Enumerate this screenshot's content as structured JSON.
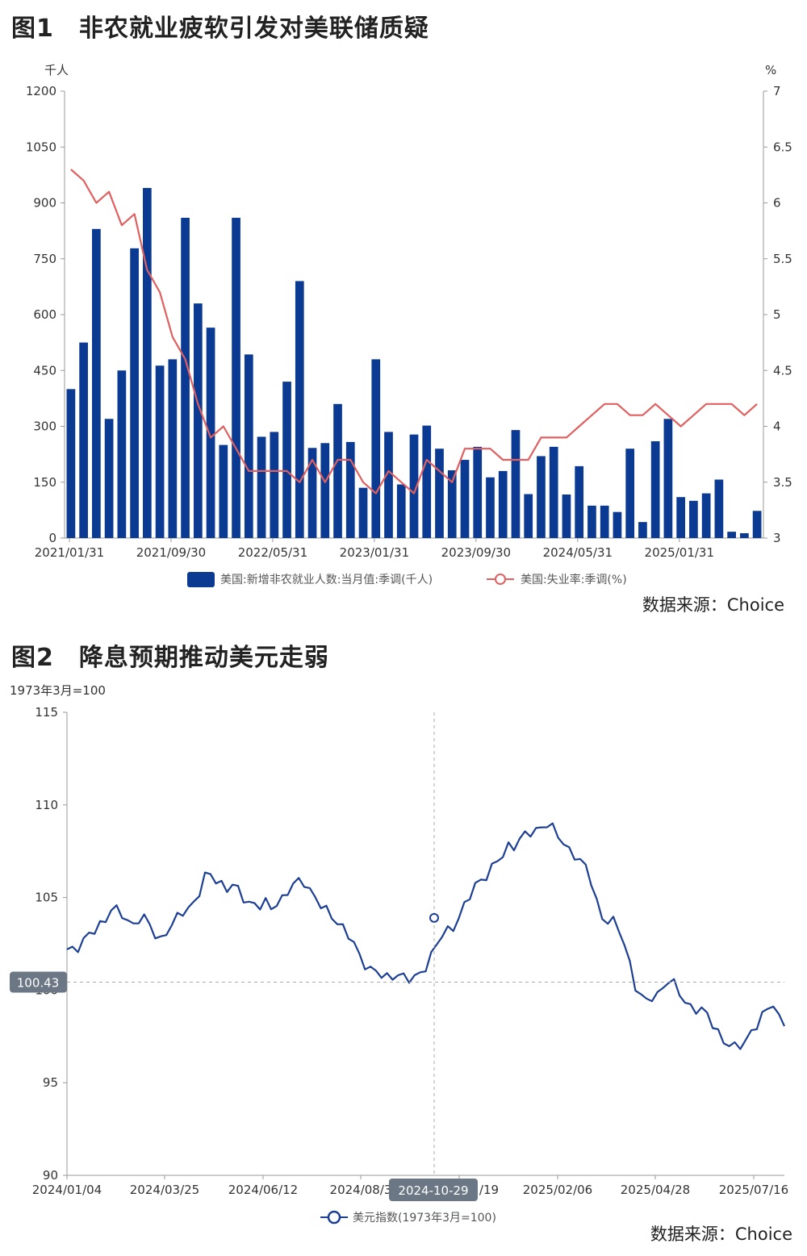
{
  "figure1": {
    "title": "图1　非农就业疲软引发对美联储质疑",
    "source": "数据来源：Choice",
    "chart_data": {
      "type": "bar+line",
      "left_axis": {
        "unit": "千人",
        "min": 0,
        "max": 1200,
        "ticks": [
          "0",
          "150",
          "300",
          "450",
          "600",
          "750",
          "900",
          "1050",
          "1200"
        ]
      },
      "right_axis": {
        "unit": "%",
        "min": 3,
        "max": 7,
        "ticks": [
          "3",
          "3.5",
          "4",
          "4.5",
          "5",
          "5.5",
          "6",
          "6.5",
          "7"
        ]
      },
      "x_tick_labels": [
        "2021/01/31",
        "2021/09/30",
        "2022/05/31",
        "2023/01/31",
        "2023/09/30",
        "2024/05/31",
        "2025/01/31"
      ],
      "series": [
        {
          "name": "美国:新增非农就业人数:当月值:季调(千人)",
          "type": "bar",
          "color": "#0b3a92",
          "values": [
            400,
            525,
            830,
            320,
            450,
            778,
            940,
            463,
            480,
            860,
            630,
            565,
            250,
            860,
            493,
            272,
            285,
            420,
            690,
            242,
            255,
            360,
            258,
            135,
            480,
            285,
            144,
            278,
            302,
            240,
            182,
            210,
            245,
            163,
            180,
            290,
            118,
            220,
            245,
            117,
            193,
            87,
            87,
            70,
            240,
            43,
            260,
            320,
            110,
            100,
            120,
            157,
            17,
            13,
            73
          ]
        },
        {
          "name": "美国:失业率:季调(%)",
          "type": "line",
          "color": "#e06060",
          "values": [
            6.3,
            6.2,
            6.0,
            6.1,
            5.8,
            5.9,
            5.4,
            5.2,
            4.8,
            4.6,
            4.2,
            3.9,
            4.0,
            3.8,
            3.6,
            3.6,
            3.6,
            3.6,
            3.5,
            3.7,
            3.5,
            3.7,
            3.7,
            3.5,
            3.4,
            3.6,
            3.5,
            3.4,
            3.7,
            3.6,
            3.5,
            3.8,
            3.8,
            3.8,
            3.7,
            3.7,
            3.7,
            3.9,
            3.9,
            3.9,
            4.0,
            4.1,
            4.2,
            4.2,
            4.1,
            4.1,
            4.2,
            4.1,
            4.0,
            4.1,
            4.2,
            4.2,
            4.2,
            4.1,
            4.2
          ]
        }
      ]
    }
  },
  "figure2": {
    "title": "图2　降息预期推动美元走弱",
    "source": "数据来源：Choice",
    "chart_data": {
      "type": "line",
      "y_axis": {
        "unit": "1973年3月=100",
        "min": 90,
        "max": 115,
        "ticks": [
          "90",
          "95",
          "100",
          "105",
          "110",
          "115"
        ]
      },
      "x_tick_labels": [
        "2024/01/04",
        "2024/03/25",
        "2024/06/12",
        "2024/08/3",
        "2024/11/19",
        "2025/02/06",
        "2025/04/28",
        "2025/07/16"
      ],
      "x_tick_display": [
        "2024/01/04",
        "2024/03/25",
        "2024/06/12",
        "2024/08/3",
        "/19",
        "2025/02/06",
        "2025/04/28",
        "2025/07/16"
      ],
      "crosshair": {
        "date": "2024-10-29",
        "value_label": "100.43"
      },
      "series": [
        {
          "name": "美元指数(1973年3月=100)",
          "color": "#1c3f94",
          "values": [
            102.2,
            102.3,
            102.4,
            102.6,
            102.9,
            103.2,
            103.6,
            103.9,
            104.4,
            104.2,
            104.0,
            103.8,
            103.6,
            103.9,
            103.8,
            103.4,
            103.0,
            102.8,
            103.2,
            103.5,
            103.8,
            104.2,
            104.5,
            104.8,
            105.3,
            106.0,
            106.2,
            106.0,
            105.8,
            105.5,
            105.6,
            105.3,
            105.0,
            104.8,
            104.7,
            104.5,
            104.6,
            104.4,
            104.8,
            105.0,
            105.3,
            105.6,
            105.8,
            105.9,
            105.5,
            105.0,
            104.5,
            104.2,
            104.0,
            103.8,
            103.4,
            102.9,
            102.4,
            101.8,
            101.5,
            101.2,
            101.0,
            100.7,
            100.6,
            100.8,
            101.0,
            100.7,
            100.5,
            100.6,
            100.9,
            101.4,
            101.9,
            102.4,
            102.9,
            103.2,
            103.5,
            104.0,
            104.5,
            105.0,
            105.6,
            106.0,
            106.3,
            106.6,
            106.9,
            107.2,
            107.8,
            107.9,
            108.2,
            108.3,
            108.4,
            108.6,
            108.9,
            109.1,
            108.7,
            108.2,
            107.9,
            107.6,
            107.4,
            107.0,
            106.5,
            105.8,
            104.8,
            104.0,
            103.8,
            103.6,
            103.2,
            102.5,
            101.5,
            100.3,
            99.6,
            99.3,
            99.6,
            99.8,
            100.3,
            100.5,
            100.2,
            99.8,
            99.4,
            99.2,
            99.0,
            98.8,
            98.6,
            98.2,
            97.8,
            97.3,
            97.0,
            96.8,
            97.0,
            97.4,
            97.8,
            98.1,
            98.5,
            98.9,
            99.4,
            98.6,
            98.2
          ]
        }
      ]
    }
  }
}
